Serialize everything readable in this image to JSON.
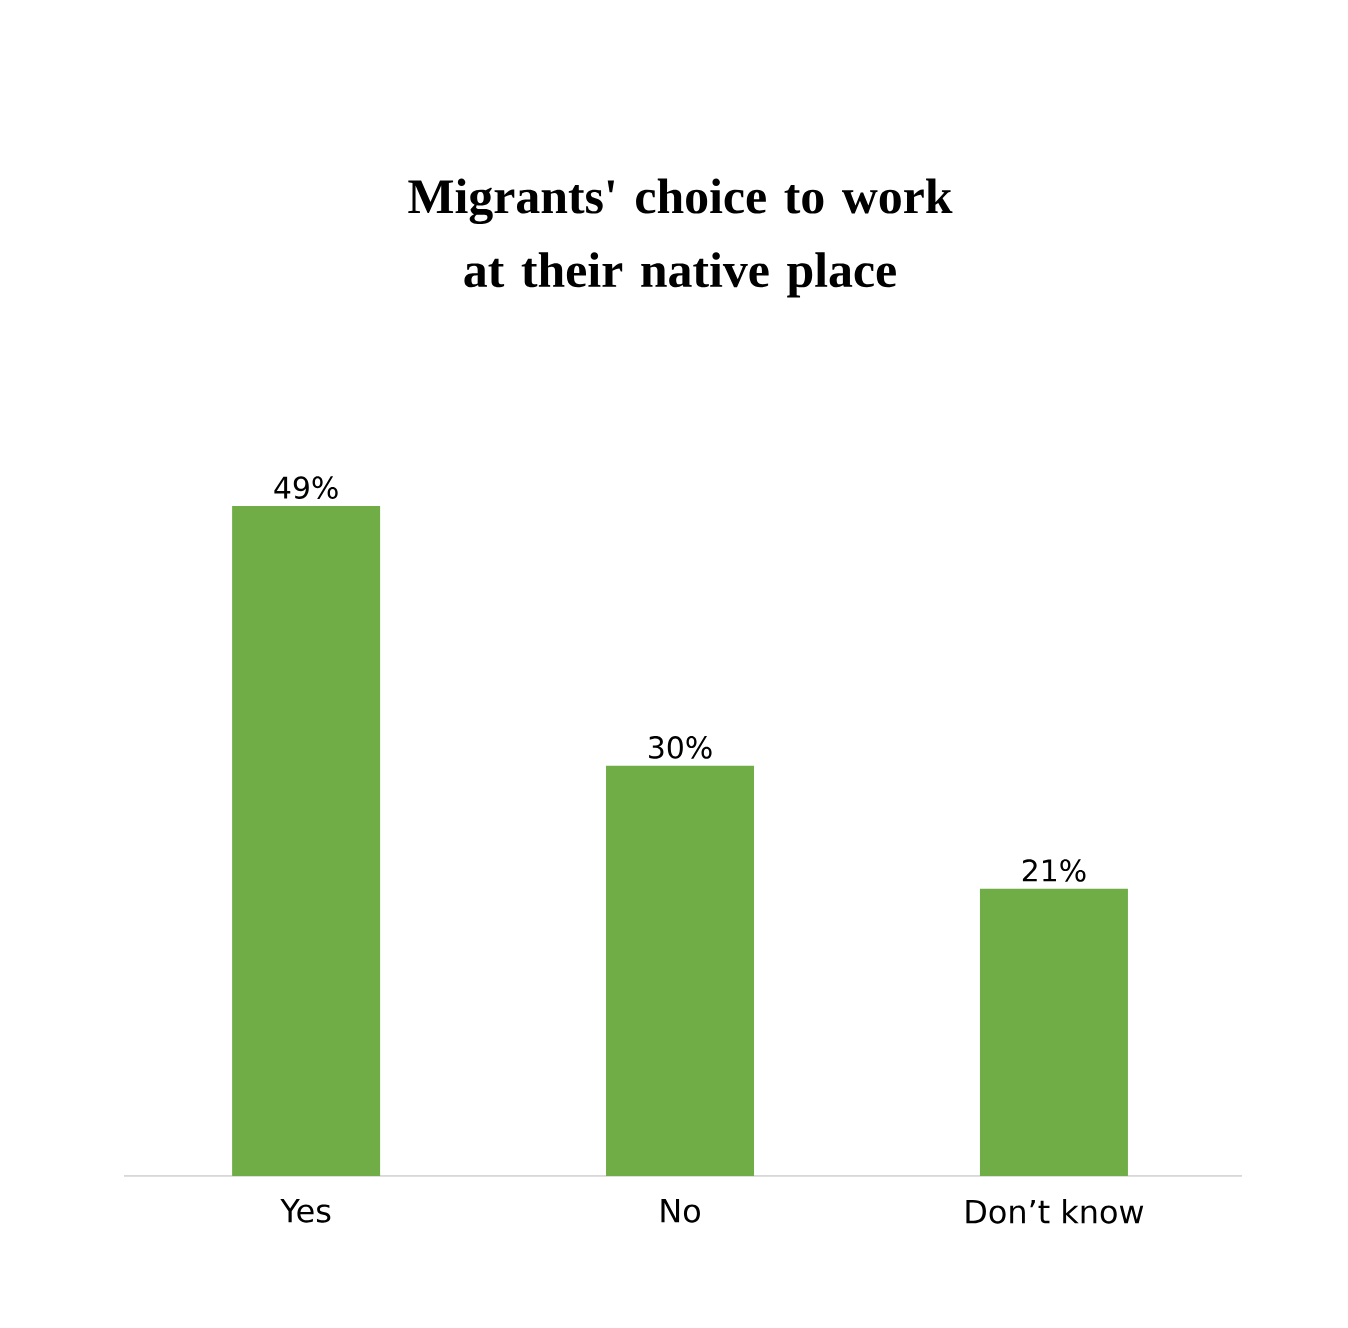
{
  "chart_data": {
    "type": "bar",
    "title": "Migrants' choice to work at their native place",
    "categories": [
      "Yes",
      "No",
      "Don’t know"
    ],
    "values": [
      49,
      30,
      21
    ],
    "value_labels": [
      "49%",
      "30%",
      "21%"
    ],
    "color": "#70ad47"
  }
}
